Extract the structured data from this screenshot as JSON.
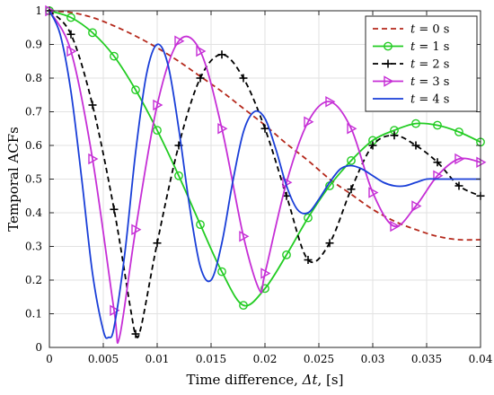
{
  "chart_data": {
    "type": "line",
    "xlabel": "Time difference, Δt, [s]",
    "ylabel": "Temporal ACFs",
    "xlim": [
      0,
      0.04
    ],
    "ylim": [
      0,
      1
    ],
    "xticks": [
      0,
      0.005,
      0.01,
      0.015,
      0.02,
      0.025,
      0.03,
      0.035,
      0.04
    ],
    "xtick_labels": [
      "0",
      "0.005",
      "0.01",
      "0.015",
      "0.02",
      "0.025",
      "0.03",
      "0.035",
      "0.04"
    ],
    "yticks": [
      0,
      0.1,
      0.2,
      0.3,
      0.4,
      0.5,
      0.6,
      0.7,
      0.8,
      0.9,
      1
    ],
    "ytick_labels": [
      "0",
      "0.1",
      "0.2",
      "0.3",
      "0.4",
      "0.5",
      "0.6",
      "0.7",
      "0.8",
      "0.9",
      "1"
    ],
    "grid": true,
    "legend_position": "top-right",
    "series": [
      {
        "name": "t = 0 s",
        "legend_parts": [
          "t",
          " = 0 s"
        ],
        "color": "#b5291c",
        "dash": "6,4",
        "marker": "none",
        "x": [
          0,
          0.002,
          0.004,
          0.006,
          0.008,
          0.01,
          0.012,
          0.014,
          0.016,
          0.018,
          0.02,
          0.022,
          0.024,
          0.026,
          0.028,
          0.03,
          0.032,
          0.034,
          0.036,
          0.038,
          0.04
        ],
        "y": [
          1.0,
          0.995,
          0.98,
          0.955,
          0.925,
          0.89,
          0.85,
          0.805,
          0.76,
          0.71,
          0.66,
          0.605,
          0.555,
          0.5,
          0.455,
          0.41,
          0.375,
          0.35,
          0.33,
          0.32,
          0.32
        ]
      },
      {
        "name": "t = 1 s",
        "legend_parts": [
          "t",
          " = 1 s"
        ],
        "color": "#22cc22",
        "dash": "",
        "marker": "circle",
        "x": [
          0,
          0.002,
          0.004,
          0.006,
          0.008,
          0.01,
          0.012,
          0.014,
          0.016,
          0.018,
          0.02,
          0.022,
          0.024,
          0.026,
          0.028,
          0.03,
          0.032,
          0.034,
          0.036,
          0.038,
          0.04
        ],
        "y": [
          1.0,
          0.98,
          0.935,
          0.865,
          0.765,
          0.645,
          0.51,
          0.365,
          0.225,
          0.125,
          0.175,
          0.275,
          0.385,
          0.48,
          0.555,
          0.615,
          0.645,
          0.665,
          0.66,
          0.64,
          0.61
        ]
      },
      {
        "name": "t = 2 s",
        "legend_parts": [
          "t",
          " = 2 s"
        ],
        "color": "#000000",
        "dash": "6,4",
        "marker": "plus",
        "x": [
          0,
          0.002,
          0.004,
          0.006,
          0.0075,
          0.008,
          0.0085,
          0.01,
          0.012,
          0.014,
          0.016,
          0.018,
          0.02,
          0.022,
          0.024,
          0.026,
          0.028,
          0.03,
          0.032,
          0.034,
          0.036,
          0.038,
          0.04
        ],
        "y": [
          1.0,
          0.93,
          0.72,
          0.41,
          0.12,
          0.04,
          0.06,
          0.31,
          0.6,
          0.8,
          0.87,
          0.8,
          0.65,
          0.45,
          0.26,
          0.31,
          0.47,
          0.6,
          0.63,
          0.6,
          0.55,
          0.48,
          0.45
        ]
      },
      {
        "name": "t = 3 s",
        "legend_parts": [
          "t",
          " = 3 s"
        ],
        "color": "#c62fd6",
        "dash": "",
        "marker": "triangle-right",
        "x": [
          0,
          0.002,
          0.004,
          0.006,
          0.0065,
          0.008,
          0.01,
          0.012,
          0.014,
          0.016,
          0.018,
          0.0195,
          0.02,
          0.022,
          0.024,
          0.026,
          0.028,
          0.03,
          0.032,
          0.034,
          0.036,
          0.038,
          0.04
        ],
        "y": [
          1.0,
          0.88,
          0.56,
          0.11,
          0.03,
          0.35,
          0.72,
          0.91,
          0.88,
          0.65,
          0.33,
          0.17,
          0.22,
          0.49,
          0.67,
          0.73,
          0.65,
          0.46,
          0.36,
          0.42,
          0.51,
          0.56,
          0.55
        ]
      },
      {
        "name": "t = 4 s",
        "legend_parts": [
          "t",
          " = 4 s"
        ],
        "color": "#1a3fd8",
        "dash": "",
        "marker": "none",
        "x": [
          0,
          0.001,
          0.002,
          0.003,
          0.004,
          0.005,
          0.0055,
          0.006,
          0.007,
          0.008,
          0.009,
          0.01,
          0.011,
          0.012,
          0.013,
          0.014,
          0.015,
          0.016,
          0.017,
          0.018,
          0.019,
          0.02,
          0.021,
          0.022,
          0.023,
          0.024,
          0.025,
          0.026,
          0.027,
          0.028,
          0.029,
          0.03,
          0.031,
          0.032,
          0.033,
          0.034,
          0.035,
          0.036,
          0.037,
          0.038,
          0.039,
          0.04
        ],
        "y": [
          1.0,
          0.93,
          0.76,
          0.5,
          0.22,
          0.05,
          0.03,
          0.06,
          0.28,
          0.58,
          0.81,
          0.9,
          0.84,
          0.65,
          0.42,
          0.24,
          0.2,
          0.31,
          0.49,
          0.64,
          0.7,
          0.68,
          0.59,
          0.48,
          0.41,
          0.4,
          0.44,
          0.49,
          0.53,
          0.54,
          0.53,
          0.51,
          0.49,
          0.48,
          0.48,
          0.49,
          0.5,
          0.5,
          0.5,
          0.5,
          0.5,
          0.5
        ]
      }
    ]
  }
}
